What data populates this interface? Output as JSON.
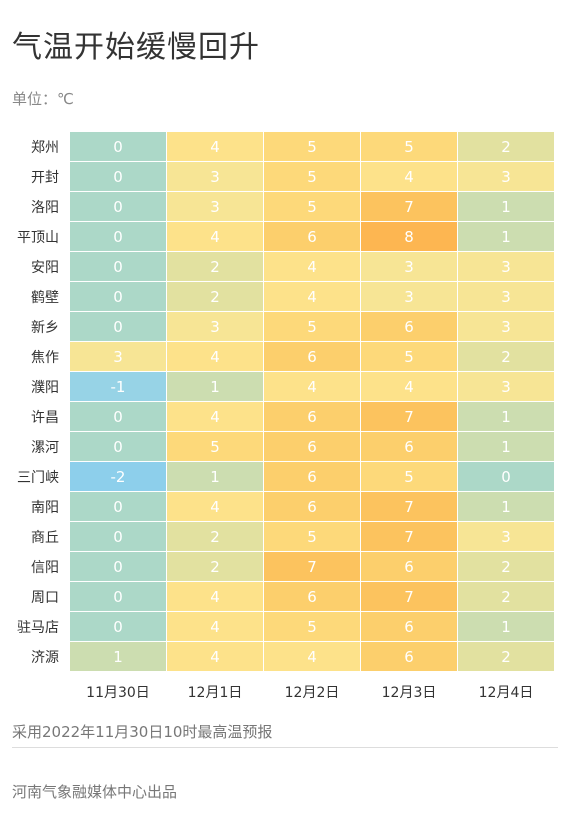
{
  "title": "气温开始缓慢回升",
  "unit_label": "单位：℃",
  "note": "采用2022年11月30日10时最高温预报",
  "credit": "河南气象融媒体中心出品",
  "chart_data": {
    "type": "heatmap",
    "title": "气温开始缓慢回升",
    "unit": "℃",
    "columns": [
      "11月30日",
      "12月1日",
      "12月2日",
      "12月3日",
      "12月4日"
    ],
    "rows": [
      "郑州",
      "开封",
      "洛阳",
      "平顶山",
      "安阳",
      "鹤壁",
      "新乡",
      "焦作",
      "濮阳",
      "许昌",
      "漯河",
      "三门峡",
      "南阳",
      "商丘",
      "信阳",
      "周口",
      "驻马店",
      "济源"
    ],
    "values": [
      [
        0,
        4,
        5,
        5,
        2
      ],
      [
        0,
        3,
        5,
        4,
        3
      ],
      [
        0,
        3,
        5,
        7,
        1
      ],
      [
        0,
        4,
        6,
        8,
        1
      ],
      [
        0,
        2,
        4,
        3,
        3
      ],
      [
        0,
        2,
        4,
        3,
        3
      ],
      [
        0,
        3,
        5,
        6,
        3
      ],
      [
        3,
        4,
        6,
        5,
        2
      ],
      [
        -1,
        1,
        4,
        4,
        3
      ],
      [
        0,
        4,
        6,
        7,
        1
      ],
      [
        0,
        5,
        6,
        6,
        1
      ],
      [
        -2,
        1,
        6,
        5,
        0
      ],
      [
        0,
        4,
        6,
        7,
        1
      ],
      [
        0,
        2,
        5,
        7,
        3
      ],
      [
        0,
        2,
        7,
        6,
        2
      ],
      [
        0,
        4,
        6,
        7,
        2
      ],
      [
        0,
        4,
        5,
        6,
        1
      ],
      [
        1,
        4,
        4,
        6,
        2
      ]
    ],
    "color_scale": {
      "-2": "#8DCFEB",
      "-1": "#97D3E6",
      "0": "#ACD8C8",
      "1": "#CCDDB0",
      "2": "#E2E1A0",
      "3": "#F7E595",
      "4": "#FDE28A",
      "5": "#FDD97A",
      "6": "#FCCF6C",
      "7": "#FCC35E",
      "8": "#FDB651"
    }
  }
}
